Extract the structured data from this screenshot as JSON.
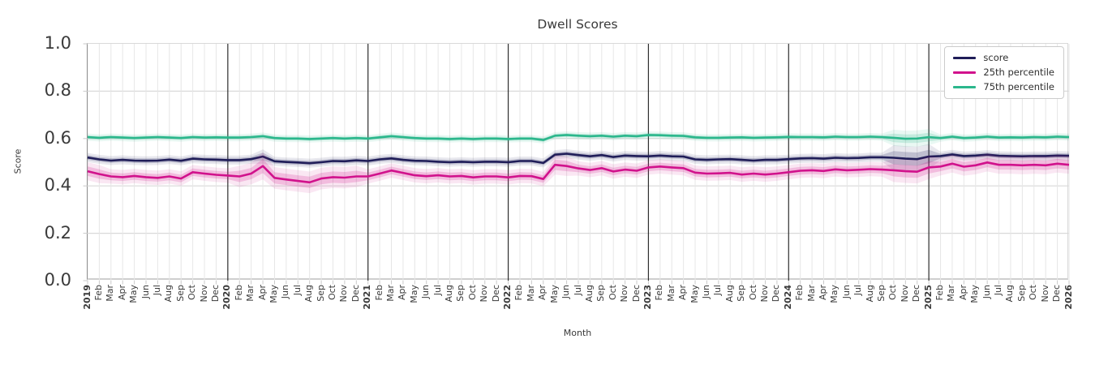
{
  "chart_data": {
    "type": "line",
    "title": "Dwell Scores",
    "xlabel": "Month",
    "ylabel": "Score",
    "ylim": [
      0.0,
      1.0
    ],
    "yticks": [
      "0.0",
      "0.2",
      "0.4",
      "0.6",
      "0.8",
      "1.0"
    ],
    "grid": true,
    "legend_position": "upper right",
    "x_categories": [
      "2019",
      "Feb",
      "Mar",
      "Apr",
      "May",
      "Jun",
      "Jul",
      "Aug",
      "Sep",
      "Oct",
      "Nov",
      "Dec",
      "2020",
      "Feb",
      "Mar",
      "Apr",
      "May",
      "Jun",
      "Jul",
      "Aug",
      "Sep",
      "Oct",
      "Nov",
      "Dec",
      "2021",
      "Feb",
      "Mar",
      "Apr",
      "May",
      "Jun",
      "Jul",
      "Aug",
      "Sep",
      "Oct",
      "Nov",
      "Dec",
      "2022",
      "Feb",
      "Mar",
      "Apr",
      "May",
      "Jun",
      "Jul",
      "Aug",
      "Sep",
      "Oct",
      "Nov",
      "Dec",
      "2023",
      "Feb",
      "Mar",
      "Apr",
      "May",
      "Jun",
      "Jul",
      "Aug",
      "Sep",
      "Oct",
      "Nov",
      "Dec",
      "2024",
      "Feb",
      "Mar",
      "Apr",
      "May",
      "Jun",
      "Jul",
      "Aug",
      "Sep",
      "Oct",
      "Nov",
      "Dec",
      "2025",
      "Feb",
      "Mar",
      "Apr",
      "May",
      "Jun",
      "Jul",
      "Aug",
      "Sep",
      "Oct",
      "Nov",
      "Dec",
      "2026"
    ],
    "year_boundary_line_indices": [
      12,
      24,
      36,
      48,
      60,
      72
    ],
    "series": [
      {
        "name": "score",
        "color": "#1f1d58",
        "values": [
          0.52,
          0.512,
          0.507,
          0.51,
          0.507,
          0.506,
          0.507,
          0.511,
          0.506,
          0.515,
          0.512,
          0.511,
          0.509,
          0.509,
          0.513,
          0.524,
          0.504,
          0.501,
          0.499,
          0.496,
          0.5,
          0.505,
          0.504,
          0.508,
          0.505,
          0.512,
          0.516,
          0.51,
          0.506,
          0.505,
          0.502,
          0.5,
          0.502,
          0.5,
          0.502,
          0.502,
          0.5,
          0.505,
          0.505,
          0.497,
          0.532,
          0.536,
          0.53,
          0.525,
          0.53,
          0.522,
          0.528,
          0.526,
          0.525,
          0.528,
          0.525,
          0.524,
          0.512,
          0.51,
          0.512,
          0.513,
          0.51,
          0.507,
          0.51,
          0.51,
          0.513,
          0.516,
          0.517,
          0.515,
          0.519,
          0.517,
          0.518,
          0.521,
          0.521,
          0.519,
          0.515,
          0.513,
          0.524,
          0.526,
          0.533,
          0.526,
          0.528,
          0.532,
          0.527,
          0.526,
          0.525,
          0.526,
          0.526,
          0.528,
          0.527
        ],
        "band": {
          "default": 0.01,
          "overrides": [
            [
              15,
              15,
              0.016
            ],
            [
              69,
              72,
              0.028
            ]
          ]
        }
      },
      {
        "name": "25th percentile",
        "color": "#d1128c",
        "values": [
          0.462,
          0.45,
          0.44,
          0.437,
          0.442,
          0.437,
          0.434,
          0.44,
          0.431,
          0.458,
          0.452,
          0.447,
          0.444,
          0.44,
          0.452,
          0.484,
          0.434,
          0.427,
          0.421,
          0.415,
          0.431,
          0.437,
          0.435,
          0.44,
          0.44,
          0.452,
          0.465,
          0.455,
          0.445,
          0.441,
          0.445,
          0.44,
          0.442,
          0.436,
          0.44,
          0.44,
          0.436,
          0.442,
          0.441,
          0.429,
          0.489,
          0.484,
          0.474,
          0.467,
          0.475,
          0.461,
          0.469,
          0.464,
          0.478,
          0.482,
          0.478,
          0.475,
          0.456,
          0.452,
          0.453,
          0.455,
          0.448,
          0.452,
          0.448,
          0.452,
          0.458,
          0.464,
          0.466,
          0.463,
          0.47,
          0.466,
          0.468,
          0.471,
          0.469,
          0.466,
          0.462,
          0.46,
          0.478,
          0.482,
          0.494,
          0.481,
          0.487,
          0.499,
          0.489,
          0.489,
          0.487,
          0.489,
          0.487,
          0.494,
          0.489
        ],
        "band": {
          "default": 0.016,
          "overrides": [
            [
              0,
              1,
              0.02
            ],
            [
              13,
              23,
              0.024
            ],
            [
              15,
              15,
              0.03
            ],
            [
              40,
              41,
              0.022
            ],
            [
              69,
              72,
              0.026
            ],
            [
              73,
              84,
              0.02
            ]
          ]
        }
      },
      {
        "name": "75th percentile",
        "color": "#2bb78c",
        "values": [
          0.606,
          0.603,
          0.606,
          0.604,
          0.602,
          0.604,
          0.606,
          0.604,
          0.602,
          0.606,
          0.604,
          0.605,
          0.604,
          0.604,
          0.606,
          0.61,
          0.602,
          0.6,
          0.6,
          0.598,
          0.6,
          0.602,
          0.6,
          0.602,
          0.6,
          0.605,
          0.61,
          0.606,
          0.602,
          0.6,
          0.6,
          0.598,
          0.6,
          0.598,
          0.6,
          0.6,
          0.598,
          0.6,
          0.6,
          0.594,
          0.612,
          0.615,
          0.612,
          0.61,
          0.612,
          0.608,
          0.612,
          0.61,
          0.615,
          0.614,
          0.612,
          0.611,
          0.605,
          0.603,
          0.603,
          0.604,
          0.605,
          0.603,
          0.604,
          0.605,
          0.607,
          0.606,
          0.606,
          0.605,
          0.608,
          0.606,
          0.606,
          0.608,
          0.606,
          0.603,
          0.599,
          0.6,
          0.606,
          0.602,
          0.608,
          0.602,
          0.604,
          0.608,
          0.604,
          0.605,
          0.604,
          0.606,
          0.605,
          0.608,
          0.606
        ],
        "band": {
          "default": 0.008,
          "overrides": [
            [
              69,
              72,
              0.018
            ]
          ]
        }
      }
    ],
    "style_colors": {
      "axis_text": "#3a3a3a",
      "grid_vertical": "#e6e6e6",
      "grid_horizontal": "#d9d9d9",
      "year_line": "#2f2f2f",
      "tick_mark": "#c9c9c9",
      "legend_border": "#cccccc"
    }
  }
}
